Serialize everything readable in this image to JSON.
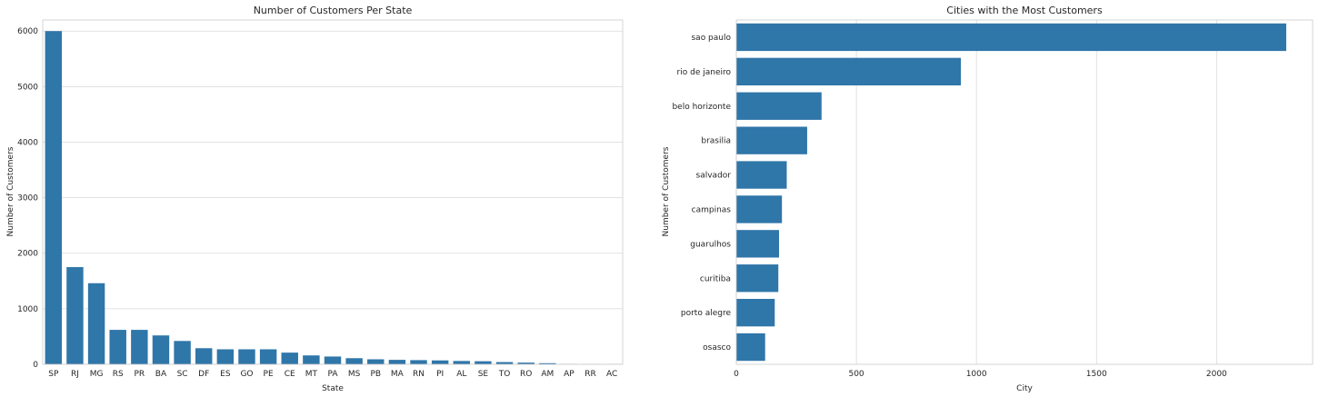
{
  "chart_data": [
    {
      "type": "bar",
      "orientation": "vertical",
      "title": "Number of Customers Per State",
      "xlabel": "State",
      "ylabel": "Number of Customers",
      "categories": [
        "SP",
        "RJ",
        "MG",
        "RS",
        "PR",
        "BA",
        "SC",
        "DF",
        "ES",
        "GO",
        "PE",
        "CE",
        "MT",
        "PA",
        "MS",
        "PB",
        "MA",
        "RN",
        "PI",
        "AL",
        "SE",
        "TO",
        "RO",
        "AM",
        "AP",
        "RR",
        "AC"
      ],
      "values": [
        6000,
        1750,
        1460,
        620,
        620,
        520,
        420,
        290,
        270,
        270,
        270,
        210,
        160,
        140,
        110,
        90,
        80,
        75,
        70,
        60,
        55,
        40,
        30,
        20,
        5,
        3,
        2
      ],
      "ylim": [
        0,
        6200
      ],
      "yticks": [
        0,
        1000,
        2000,
        3000,
        4000,
        5000,
        6000
      ],
      "grid": "horizontal",
      "color": "#2f76a9"
    },
    {
      "type": "bar",
      "orientation": "horizontal",
      "title": "Cities with the Most Customers",
      "xlabel": "City",
      "ylabel": "Number of Customers",
      "categories": [
        "sao paulo",
        "rio de janeiro",
        "belo horizonte",
        "brasilia",
        "salvador",
        "campinas",
        "guarulhos",
        "curitiba",
        "porto alegre",
        "osasco"
      ],
      "values": [
        2290,
        935,
        355,
        295,
        210,
        190,
        178,
        175,
        160,
        120
      ],
      "xlim": [
        0,
        2400
      ],
      "xticks": [
        0,
        500,
        1000,
        1500,
        2000
      ],
      "grid": "vertical",
      "color": "#2f76a9"
    }
  ]
}
